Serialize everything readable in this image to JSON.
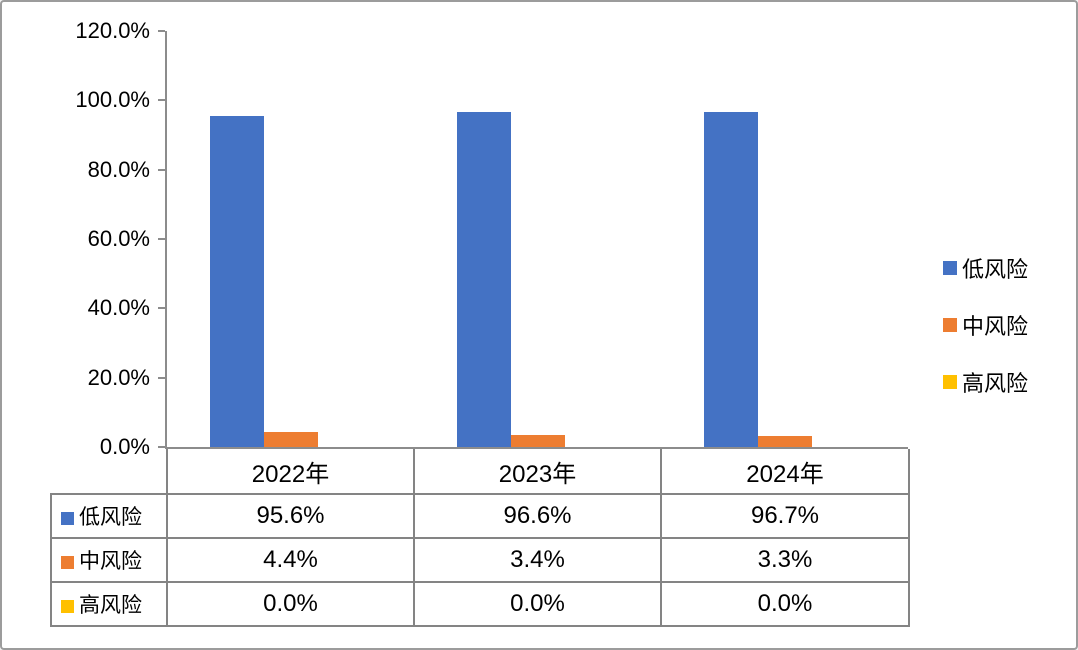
{
  "window": {
    "background": "#ffffff",
    "border_color": "#9c9c9c"
  },
  "chart_data": {
    "type": "bar",
    "title": "",
    "categories": [
      "2022年",
      "2023年",
      "2024年"
    ],
    "series": [
      {
        "name": "低风险",
        "color": "#4472C4",
        "values": [
          95.6,
          96.6,
          96.7
        ],
        "display": [
          "95.6%",
          "96.6%",
          "96.7%"
        ]
      },
      {
        "name": "中风险",
        "color": "#ED7D31",
        "values": [
          4.4,
          3.4,
          3.3
        ],
        "display": [
          "4.4%",
          "3.4%",
          "3.3%"
        ]
      },
      {
        "name": "高风险",
        "color": "#FFC000",
        "values": [
          0.0,
          0.0,
          0.0
        ],
        "display": [
          "0.0%",
          "0.0%",
          "0.0%"
        ]
      }
    ],
    "y_axis": {
      "min": 0,
      "max": 120,
      "step": 20,
      "tick_labels": [
        "0.0%",
        "20.0%",
        "40.0%",
        "60.0%",
        "80.0%",
        "100.0%",
        "120.0%"
      ]
    },
    "x_axis": {
      "shown_as_table_header": true
    },
    "legend": {
      "position": "right",
      "entries": [
        "低风险",
        "中风险",
        "高风险"
      ]
    },
    "grid": false,
    "data_table_shown": true,
    "axis_color": "#8c8c8c",
    "table_border_color": "#848484"
  }
}
